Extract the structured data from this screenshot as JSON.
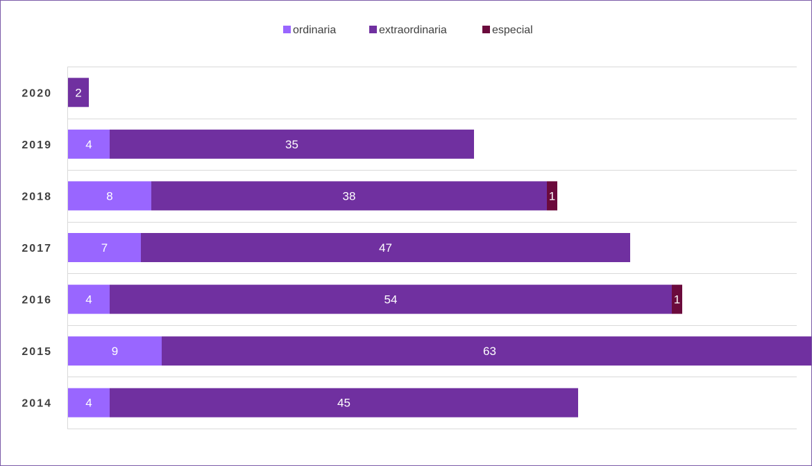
{
  "chart_data": {
    "type": "bar",
    "orientation": "horizontal",
    "stacked": true,
    "categories": [
      "2020",
      "2019",
      "2018",
      "2017",
      "2016",
      "2015",
      "2014"
    ],
    "series": [
      {
        "name": "ordinaria",
        "color": "#9966ff",
        "values": [
          0,
          4,
          8,
          7,
          4,
          9,
          4
        ]
      },
      {
        "name": "extraordinaria",
        "color": "#7030a0",
        "values": [
          2,
          35,
          38,
          47,
          54,
          63,
          45
        ]
      },
      {
        "name": "especial",
        "color": "#6b0a3c",
        "values": [
          0,
          0,
          1,
          0,
          1,
          0,
          0
        ]
      }
    ],
    "title": "",
    "xlabel": "",
    "ylabel": "",
    "xlim": [
      0,
      80
    ],
    "grid": true,
    "legend": "top",
    "data_labels": true
  }
}
